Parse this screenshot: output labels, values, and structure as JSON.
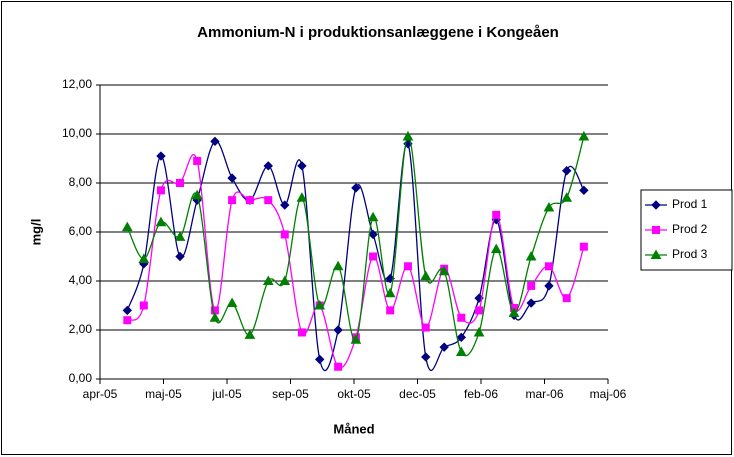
{
  "chart_data": {
    "type": "line",
    "title": "Ammonium-N i produktionsanlæggene i Kongeåen",
    "x_label": "Måned",
    "y_label": "mg/l",
    "x": [
      0.43,
      0.69,
      0.96,
      1.26,
      1.53,
      1.81,
      2.08,
      2.36,
      2.65,
      2.91,
      3.18,
      3.46,
      3.75,
      4.03,
      4.3,
      4.57,
      4.85,
      5.13,
      5.42,
      5.69,
      5.97,
      6.24,
      6.52,
      6.79,
      7.07,
      7.35,
      7.62
    ],
    "series": [
      {
        "name": "Prod 1",
        "color": "#000080",
        "marker": "diamond",
        "values": [
          2.8,
          4.7,
          9.1,
          5.0,
          7.3,
          9.7,
          8.2,
          7.3,
          8.7,
          7.1,
          8.7,
          0.8,
          2.0,
          7.8,
          5.9,
          4.1,
          9.6,
          0.9,
          1.3,
          1.7,
          3.3,
          6.5,
          2.6,
          3.1,
          3.8,
          8.5,
          7.7
        ]
      },
      {
        "name": "Prod 2",
        "color": "#ff00ff",
        "marker": "square",
        "values": [
          2.4,
          3.0,
          7.7,
          8.0,
          8.9,
          2.8,
          7.3,
          7.3,
          7.3,
          5.9,
          1.9,
          3.0,
          0.5,
          1.7,
          5.0,
          2.8,
          4.6,
          2.1,
          4.5,
          2.5,
          2.8,
          6.7,
          2.9,
          3.8,
          4.6,
          3.3,
          5.4
        ]
      },
      {
        "name": "Prod 3",
        "color": "#008000",
        "marker": "triangle",
        "values": [
          6.2,
          4.9,
          6.4,
          5.8,
          7.5,
          2.5,
          3.1,
          1.8,
          4.0,
          4.0,
          7.4,
          3.0,
          4.6,
          1.6,
          6.6,
          3.5,
          9.9,
          4.2,
          4.4,
          1.1,
          1.9,
          5.3,
          2.7,
          5.0,
          7.0,
          7.4,
          9.9
        ]
      }
    ],
    "xlim": [
      0,
      8
    ],
    "xticks": [
      {
        "value": 0,
        "label": "apr-05"
      },
      {
        "value": 1,
        "label": "maj-05"
      },
      {
        "value": 2,
        "label": "jul-05"
      },
      {
        "value": 3,
        "label": "sep-05"
      },
      {
        "value": 4,
        "label": "okt-05"
      },
      {
        "value": 5,
        "label": "dec-05"
      },
      {
        "value": 6,
        "label": "feb-06"
      },
      {
        "value": 7,
        "label": "mar-06"
      },
      {
        "value": 8,
        "label": "maj-06"
      }
    ],
    "ylim": [
      0,
      12
    ],
    "yticks": [
      {
        "value": 0,
        "label": "0,00"
      },
      {
        "value": 2,
        "label": "2,00"
      },
      {
        "value": 4,
        "label": "4,00"
      },
      {
        "value": 6,
        "label": "6,00"
      },
      {
        "value": 8,
        "label": "8,00"
      },
      {
        "value": 10,
        "label": "10,00"
      },
      {
        "value": 12,
        "label": "12,00"
      }
    ],
    "grid": true,
    "smooth": true,
    "legend": "right"
  }
}
